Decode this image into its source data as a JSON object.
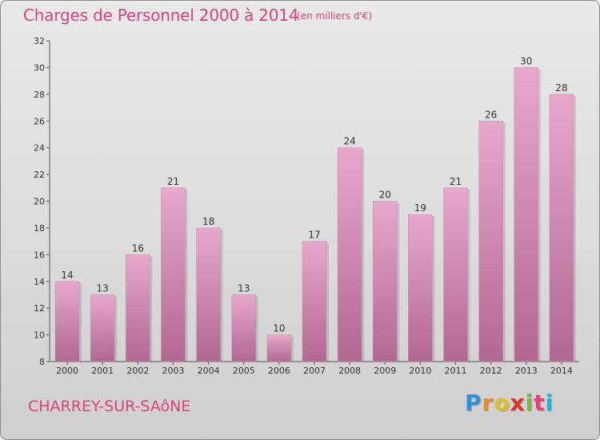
{
  "header": {
    "title": "Charges de Personnel 2000 à 2014",
    "subtitle": "(en milliers d'€)"
  },
  "footer": {
    "city": "CHARREY-SUR-SAôNE",
    "logo_letters": [
      "P",
      "r",
      "o",
      "x",
      "i",
      "t",
      "i"
    ],
    "logo_colors": [
      "#2f8fd8",
      "#e8892a",
      "#e0c02a",
      "#d8342a",
      "#7ab83a",
      "#e04080",
      "#2fb0c8"
    ]
  },
  "colors": {
    "bar_top": "#e8a8cc",
    "bar_bottom": "#b06890",
    "text": "#e04080"
  },
  "chart_data": {
    "type": "bar",
    "categories": [
      "2000",
      "2001",
      "2002",
      "2003",
      "2004",
      "2005",
      "2006",
      "2007",
      "2008",
      "2009",
      "2010",
      "2011",
      "2012",
      "2013",
      "2014"
    ],
    "values": [
      14,
      13,
      16,
      21,
      18,
      13,
      10,
      17,
      24,
      20,
      19,
      21,
      26,
      30,
      28
    ],
    "title": "Charges de Personnel 2000 à 2014",
    "subtitle": "(en milliers d'€)",
    "ylim": [
      8,
      32
    ],
    "yticks": [
      8,
      10,
      12,
      14,
      16,
      18,
      20,
      22,
      24,
      26,
      28,
      30,
      32
    ],
    "grid": false,
    "data_labels": true
  }
}
